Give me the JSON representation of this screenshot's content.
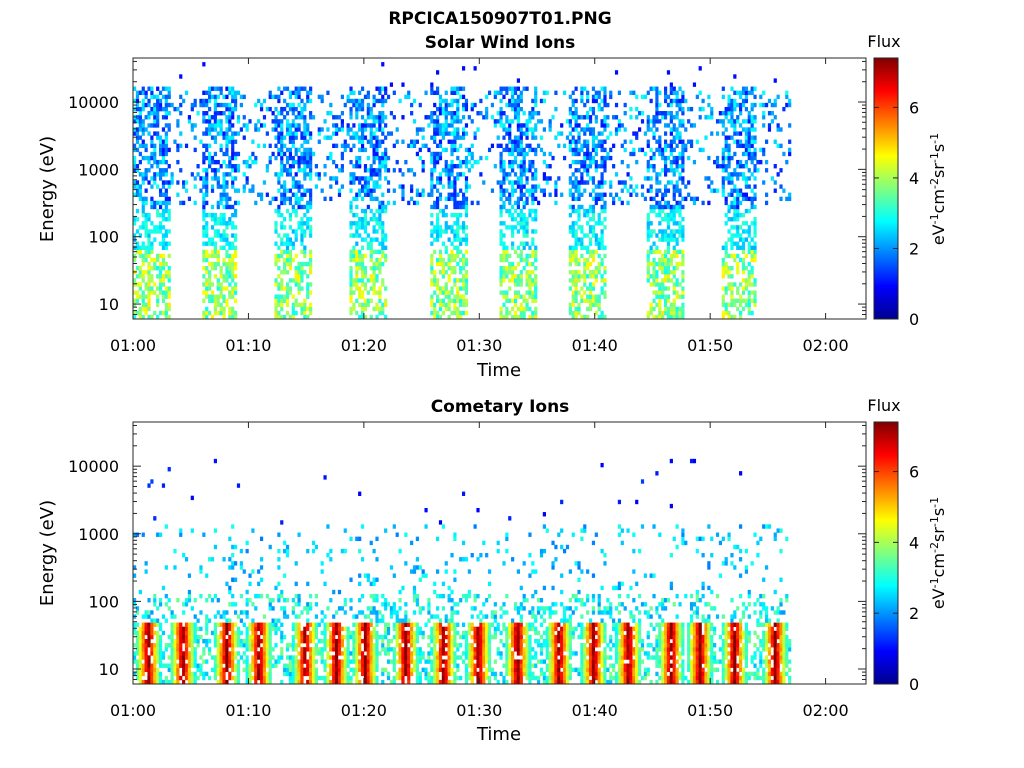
{
  "figure": {
    "title": "RPCICA150907T01.PNG"
  },
  "colorbar": {
    "label_html": "eV⁻¹cm⁻²sr⁻¹s⁻¹",
    "title": "Flux",
    "ticks": [
      "0",
      "2",
      "4",
      "6"
    ],
    "range": [
      0,
      7.4
    ],
    "colormap": "jet"
  },
  "chart_data": [
    {
      "type": "heatmap",
      "title": "Solar Wind Ions",
      "xlabel": "Time",
      "ylabel": "Energy (eV)",
      "xticks": [
        "01:00",
        "01:10",
        "01:20",
        "01:30",
        "01:40",
        "01:50",
        "02:00"
      ],
      "yticks": [
        "10",
        "100",
        "1000",
        "10000"
      ],
      "yscale": "log",
      "xlim_minutes": [
        0,
        63.5
      ],
      "ylim": [
        6,
        45000
      ],
      "grid": false,
      "data_end_minute": 57,
      "scan_bursts_start_minutes": [
        0,
        5.8,
        12.2,
        18.6,
        25.6,
        31.6,
        37.6,
        44.4,
        50.8
      ],
      "scan_burst_duration_minutes": 3.2,
      "features": [
        {
          "energy_range_eV": [
            300,
            15000
          ],
          "flux_range": [
            1,
            3
          ],
          "description": "high-energy population present during bursts and between bursts"
        },
        {
          "energy_range_eV": [
            10,
            60
          ],
          "flux_range": [
            3,
            5
          ],
          "description": "low-energy enhancement within bursts"
        }
      ]
    },
    {
      "type": "heatmap",
      "title": "Cometary Ions",
      "xlabel": "Time",
      "ylabel": "Energy (eV)",
      "xticks": [
        "01:00",
        "01:10",
        "01:20",
        "01:30",
        "01:40",
        "01:50",
        "02:00"
      ],
      "yticks": [
        "10",
        "100",
        "1000",
        "10000"
      ],
      "yscale": "log",
      "xlim_minutes": [
        0,
        63.5
      ],
      "ylim": [
        6,
        45000
      ],
      "grid": false,
      "data_end_minute": 57,
      "peak_minutes": [
        1.2,
        4.2,
        8.0,
        10.8,
        14.8,
        17.5,
        20.0,
        23.5,
        26.8,
        29.8,
        33.2,
        36.8,
        39.8,
        42.8,
        46.5,
        49.0,
        52.0,
        55.5
      ],
      "features": [
        {
          "energy_range_eV": [
            8,
            50
          ],
          "flux_range": [
            5,
            7.4
          ],
          "description": "intense low-energy cometary ion peaks"
        },
        {
          "energy_range_eV": [
            100,
            1200
          ],
          "flux_range": [
            2,
            3
          ],
          "description": "sparse mid-energy population"
        },
        {
          "energy_range_eV": [
            2000,
            12000
          ],
          "flux_range": [
            0.5,
            1.5
          ],
          "description": "isolated high-energy counts"
        }
      ]
    }
  ]
}
